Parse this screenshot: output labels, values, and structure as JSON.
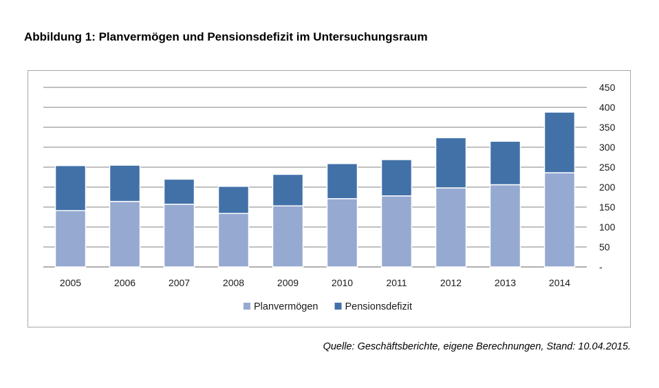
{
  "heading": "Abbildung 1: Planvermögen und Pensionsdefizit im Untersuchungsraum",
  "source": "Quelle: Geschäftsberichte, eigene Berechnungen, Stand: 10.04.2015.",
  "chart_data": {
    "type": "bar",
    "stacked": true,
    "title": "",
    "xlabel": "",
    "ylabel": "",
    "categories": [
      "2005",
      "2006",
      "2007",
      "2008",
      "2009",
      "2010",
      "2011",
      "2012",
      "2013",
      "2014"
    ],
    "series": [
      {
        "name": "Planvermögen",
        "color": "#95a9d1",
        "values": [
          141,
          164,
          157,
          134,
          153,
          171,
          178,
          198,
          206,
          236
        ]
      },
      {
        "name": "Pensionsdefizit",
        "color": "#4271a8",
        "values": [
          113,
          91,
          63,
          68,
          79,
          88,
          91,
          126,
          109,
          152
        ]
      }
    ],
    "ylim": [
      0,
      450
    ],
    "yticks": [
      0,
      50,
      100,
      150,
      200,
      250,
      300,
      350,
      400,
      450
    ],
    "ytick_labels": [
      "-",
      "50",
      "100",
      "150",
      "200",
      "250",
      "300",
      "350",
      "400",
      "450"
    ],
    "yaxis_side": "right",
    "grid": true,
    "legend": "bottom"
  }
}
